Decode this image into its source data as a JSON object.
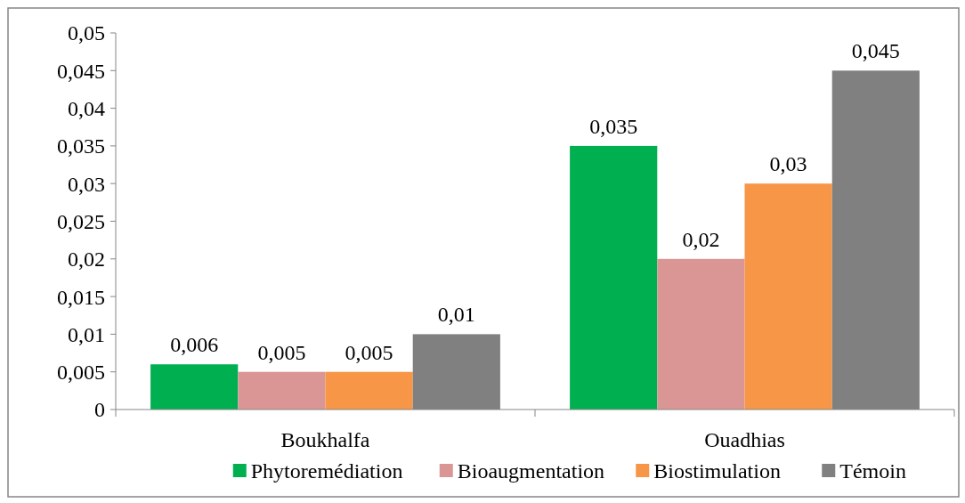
{
  "chart_data": {
    "type": "bar",
    "categories": [
      "Boukhalfa",
      "Ouadhias"
    ],
    "series": [
      {
        "name": "Phytoremédiation",
        "color": "#00b050",
        "values": [
          0.006,
          0.035
        ],
        "value_labels": [
          "0,006",
          "0,035"
        ]
      },
      {
        "name": "Bioaugmentation",
        "color": "#d99694",
        "values": [
          0.005,
          0.02
        ],
        "value_labels": [
          "0,005",
          "0,02"
        ]
      },
      {
        "name": "Biostimulation",
        "color": "#f79646",
        "values": [
          0.005,
          0.03
        ],
        "value_labels": [
          "0,005",
          "0,03"
        ]
      },
      {
        "name": "Témoin",
        "color": "#808080",
        "values": [
          0.01,
          0.045
        ],
        "value_labels": [
          "0,01",
          "0,045"
        ]
      }
    ],
    "ylim": [
      0,
      0.05
    ],
    "yticks": [
      {
        "value": 0,
        "label": "0"
      },
      {
        "value": 0.005,
        "label": "0,005"
      },
      {
        "value": 0.01,
        "label": "0,01"
      },
      {
        "value": 0.015,
        "label": "0,015"
      },
      {
        "value": 0.02,
        "label": "0,02"
      },
      {
        "value": 0.025,
        "label": "0,025"
      },
      {
        "value": 0.03,
        "label": "0,03"
      },
      {
        "value": 0.035,
        "label": "0,035"
      },
      {
        "value": 0.04,
        "label": "0,04"
      },
      {
        "value": 0.045,
        "label": "0,045"
      },
      {
        "value": 0.05,
        "label": "0,05"
      }
    ],
    "grid": false,
    "legend": "bottom"
  }
}
